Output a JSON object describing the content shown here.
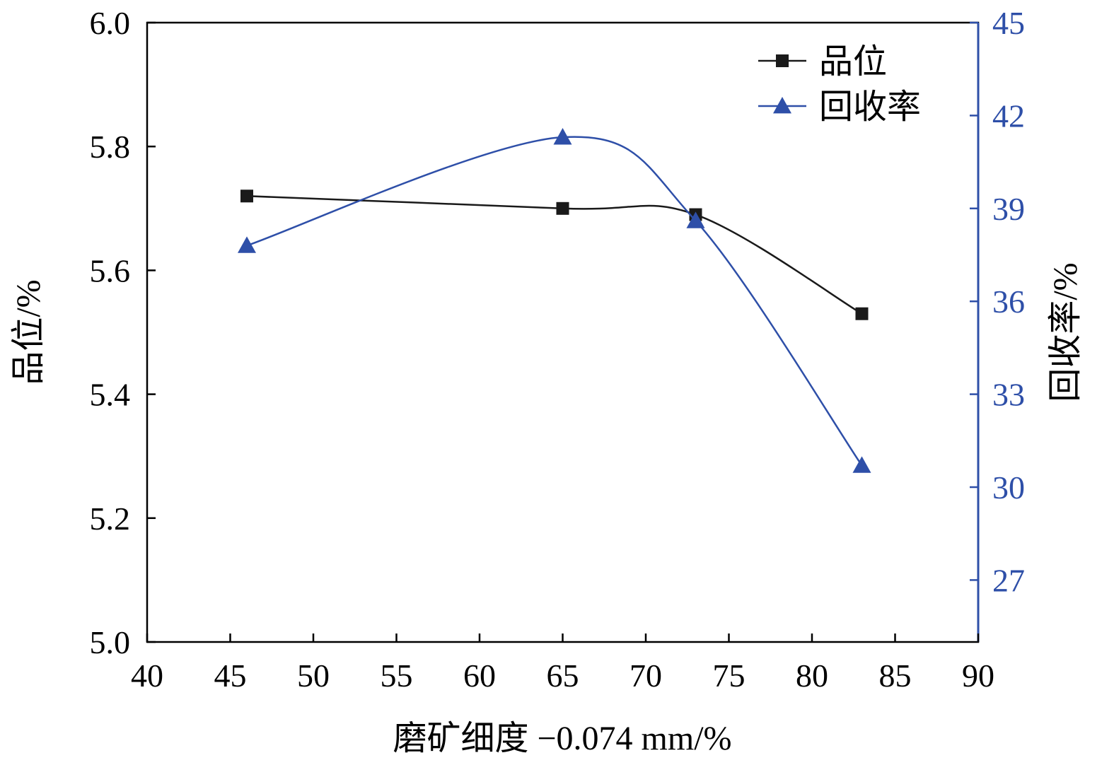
{
  "chart_data": {
    "type": "line",
    "xlabel": "磨矿细度 −0.074 mm/%",
    "ylabel_left": "品位/%",
    "ylabel_right": "回收率/%",
    "xlim": [
      40,
      90
    ],
    "ylim_left": [
      5.0,
      6.0
    ],
    "ylim_right": [
      25,
      45
    ],
    "x_ticks": [
      "40",
      "45",
      "50",
      "55",
      "60",
      "65",
      "70",
      "75",
      "80",
      "85",
      "90"
    ],
    "y_left_ticks": [
      "5.0",
      "5.2",
      "5.4",
      "5.6",
      "5.8",
      "6.0"
    ],
    "y_right_ticks": [
      "27",
      "30",
      "33",
      "36",
      "39",
      "42",
      "45"
    ],
    "x": [
      46,
      65,
      73,
      83
    ],
    "legend_position": "top-right",
    "series": [
      {
        "name": "品位",
        "axis": "left",
        "marker": "square",
        "color": "#1a1a1a",
        "x": [
          46,
          65,
          73,
          83
        ],
        "values": [
          5.72,
          5.7,
          5.69,
          5.53
        ]
      },
      {
        "name": "回收率",
        "axis": "right",
        "marker": "triangle",
        "color": "#2e4fa8",
        "x": [
          46,
          65,
          73,
          83
        ],
        "values": [
          37.8,
          41.3,
          38.6,
          30.7
        ]
      }
    ]
  }
}
